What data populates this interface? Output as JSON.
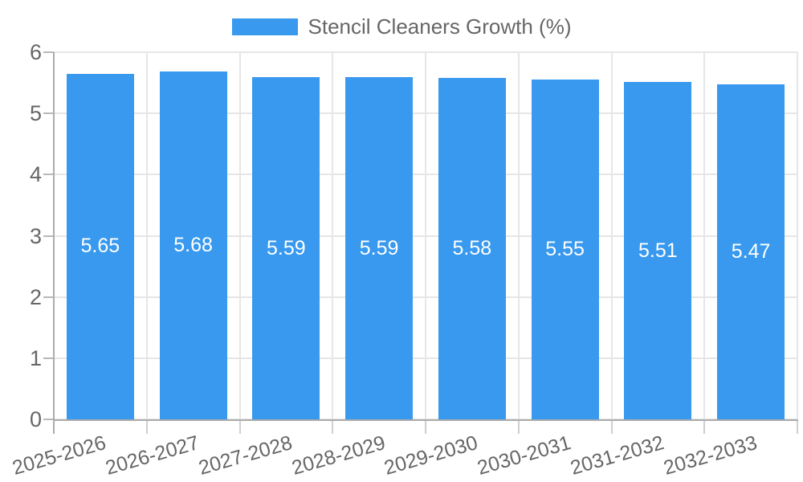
{
  "chart_data": {
    "type": "bar",
    "title": "Stencil Cleaners Growth (%)",
    "legend": {
      "position": "top",
      "entries": [
        "Stencil Cleaners Growth (%)"
      ]
    },
    "categories": [
      "2025-2026",
      "2026-2027",
      "2027-2028",
      "2028-2029",
      "2029-2030",
      "2030-2031",
      "2031-2032",
      "2032-2033"
    ],
    "series": [
      {
        "name": "Stencil Cleaners Growth (%)",
        "values": [
          5.65,
          5.68,
          5.59,
          5.59,
          5.58,
          5.55,
          5.51,
          5.47
        ]
      }
    ],
    "value_labels": [
      "5.65",
      "5.68",
      "5.59",
      "5.59",
      "5.58",
      "5.55",
      "5.51",
      "5.47"
    ],
    "xlabel": "",
    "ylabel": "",
    "ylim": [
      0,
      6
    ],
    "y_ticks": [
      0,
      1,
      2,
      3,
      4,
      5,
      6
    ],
    "grid": true,
    "colors": {
      "bar": "#3899EE",
      "bar_value_text": "#FFFFFF",
      "axis_text": "#666666",
      "grid_line": "#E6E6E6",
      "axis_line": "#ACACAC",
      "y_tick_mark": "#B8B8B8",
      "x_tick_mark": "#CFCFCF",
      "background": "#FFFFFF"
    }
  }
}
